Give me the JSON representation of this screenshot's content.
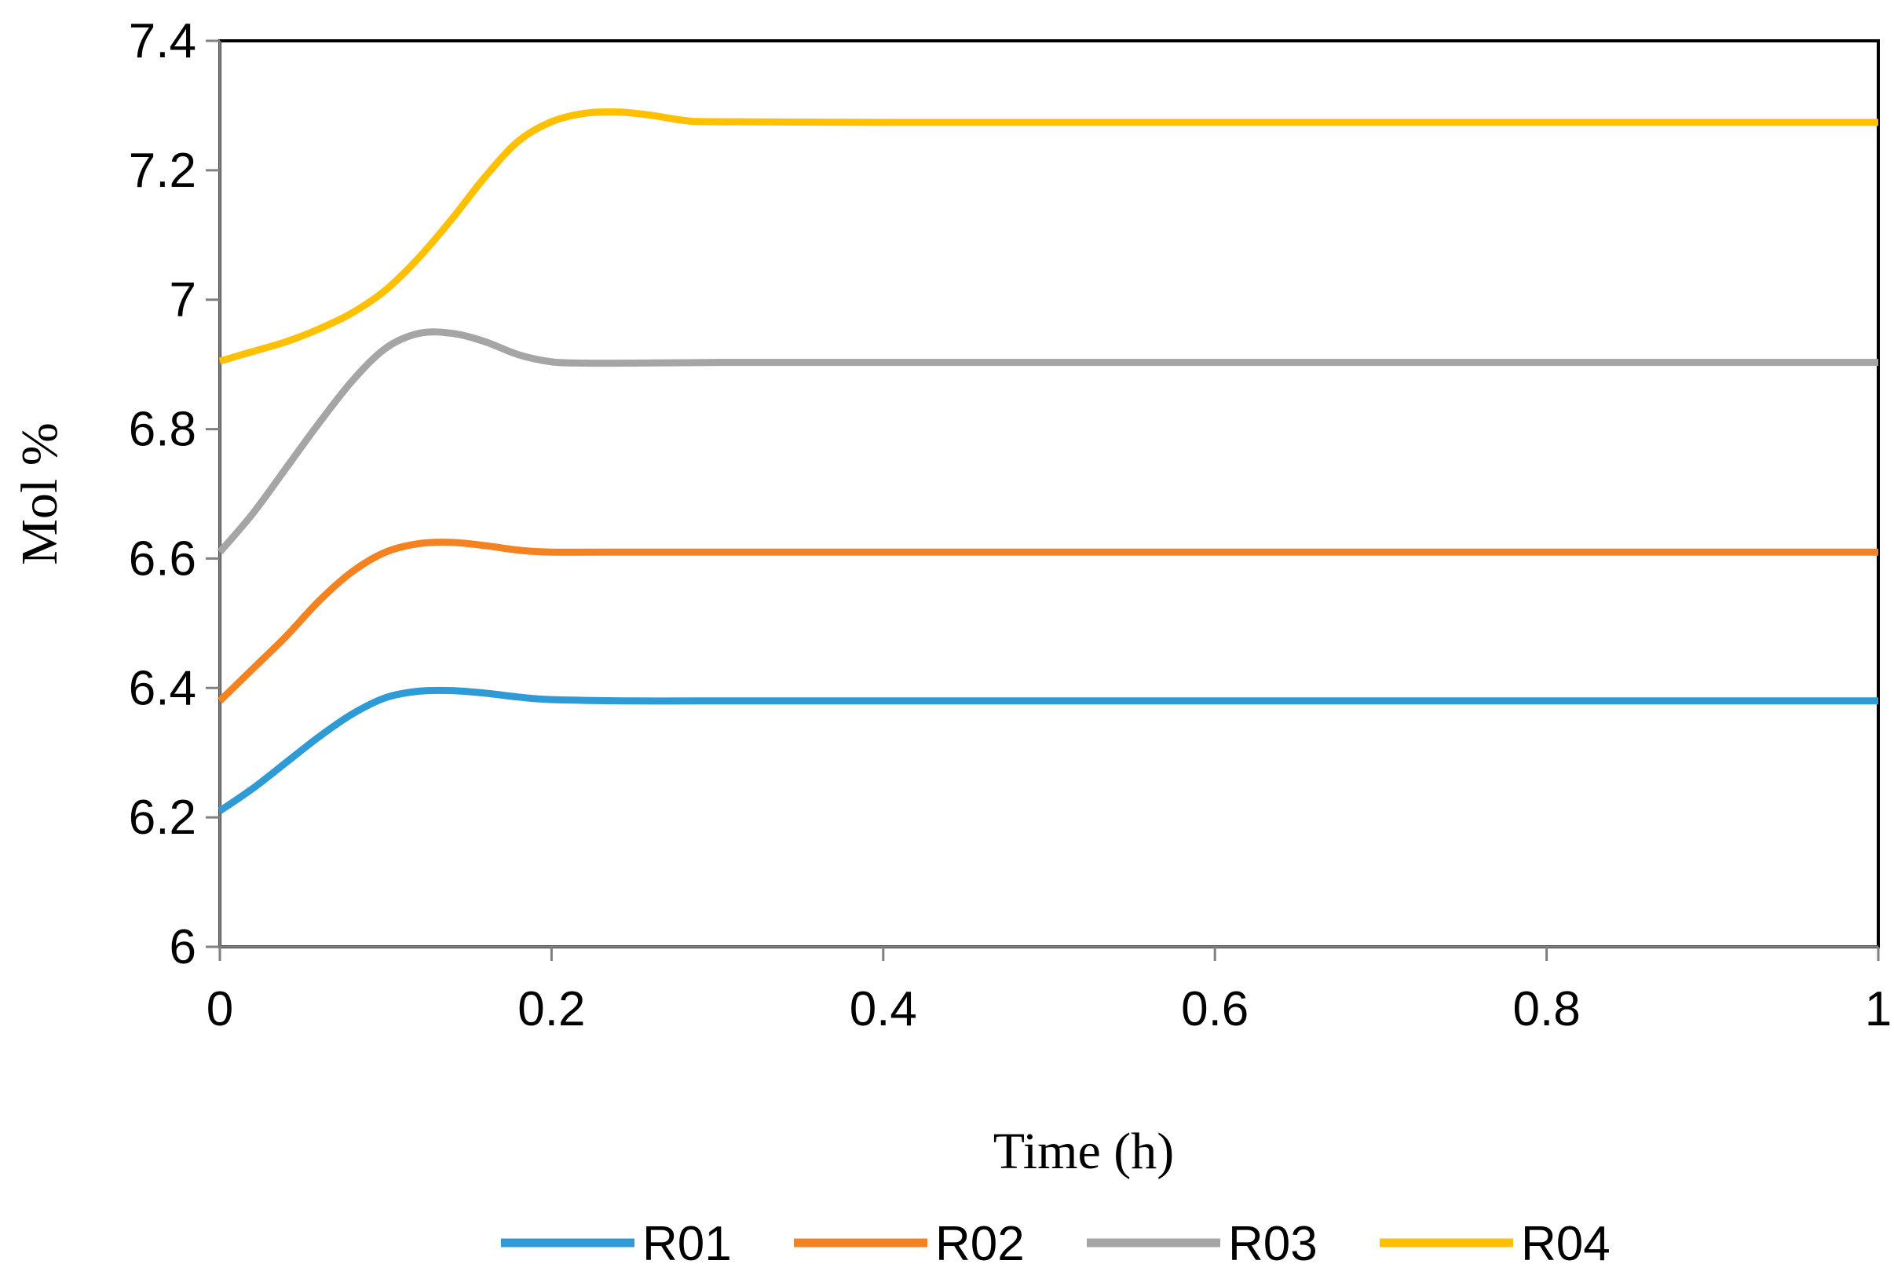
{
  "chart_data": {
    "type": "line",
    "title": "",
    "xlabel": "Time (h)",
    "ylabel": "Mol %",
    "xlim": [
      0,
      1
    ],
    "ylim": [
      6,
      7.4
    ],
    "xticks": [
      0,
      0.2,
      0.4,
      0.6,
      0.8,
      1
    ],
    "xtick_labels": [
      "0",
      "0.2",
      "0.4",
      "0.6",
      "0.8",
      "1"
    ],
    "yticks": [
      6,
      6.2,
      6.4,
      6.6,
      6.8,
      7,
      7.2,
      7.4
    ],
    "ytick_labels": [
      "6",
      "6.2",
      "6.4",
      "6.6",
      "6.8",
      "7",
      "7.2",
      "7.4"
    ],
    "grid": false,
    "legend_position": "bottom",
    "series": [
      {
        "name": "R01",
        "color": "#2E9BD6",
        "x": [
          0,
          0.02,
          0.04,
          0.06,
          0.08,
          0.1,
          0.12,
          0.14,
          0.16,
          0.18,
          0.2,
          0.25,
          0.3,
          0.4,
          0.5,
          0.6,
          0.7,
          0.8,
          0.9,
          1
        ],
        "y": [
          6.21,
          6.245,
          6.285,
          6.325,
          6.36,
          6.385,
          6.395,
          6.396,
          6.392,
          6.386,
          6.382,
          6.38,
          6.38,
          6.38,
          6.38,
          6.38,
          6.38,
          6.38,
          6.38,
          6.38
        ]
      },
      {
        "name": "R02",
        "color": "#F58220",
        "x": [
          0,
          0.02,
          0.04,
          0.06,
          0.08,
          0.1,
          0.12,
          0.14,
          0.16,
          0.18,
          0.2,
          0.25,
          0.3,
          0.4,
          0.5,
          0.6,
          0.7,
          0.8,
          0.9,
          1
        ],
        "y": [
          6.38,
          6.43,
          6.48,
          6.535,
          6.58,
          6.61,
          6.623,
          6.625,
          6.62,
          6.613,
          6.61,
          6.61,
          6.61,
          6.61,
          6.61,
          6.61,
          6.61,
          6.61,
          6.61,
          6.61
        ]
      },
      {
        "name": "R03",
        "color": "#A5A5A5",
        "x": [
          0,
          0.02,
          0.04,
          0.06,
          0.08,
          0.1,
          0.12,
          0.14,
          0.16,
          0.18,
          0.2,
          0.22,
          0.25,
          0.3,
          0.4,
          0.5,
          0.6,
          0.7,
          0.8,
          0.9,
          1
        ],
        "y": [
          6.61,
          6.67,
          6.74,
          6.81,
          6.875,
          6.925,
          6.948,
          6.948,
          6.935,
          6.915,
          6.904,
          6.902,
          6.902,
          6.903,
          6.903,
          6.903,
          6.903,
          6.903,
          6.903,
          6.903,
          6.903
        ]
      },
      {
        "name": "R04",
        "color": "#FFC000",
        "x": [
          0,
          0.02,
          0.04,
          0.06,
          0.08,
          0.1,
          0.12,
          0.14,
          0.16,
          0.18,
          0.2,
          0.22,
          0.24,
          0.26,
          0.28,
          0.3,
          0.4,
          0.5,
          0.6,
          0.7,
          0.8,
          0.9,
          1
        ],
        "y": [
          6.905,
          6.92,
          6.935,
          6.955,
          6.98,
          7.015,
          7.065,
          7.125,
          7.19,
          7.245,
          7.275,
          7.288,
          7.29,
          7.285,
          7.277,
          7.275,
          7.274,
          7.274,
          7.274,
          7.274,
          7.274,
          7.274,
          7.274
        ]
      }
    ]
  }
}
